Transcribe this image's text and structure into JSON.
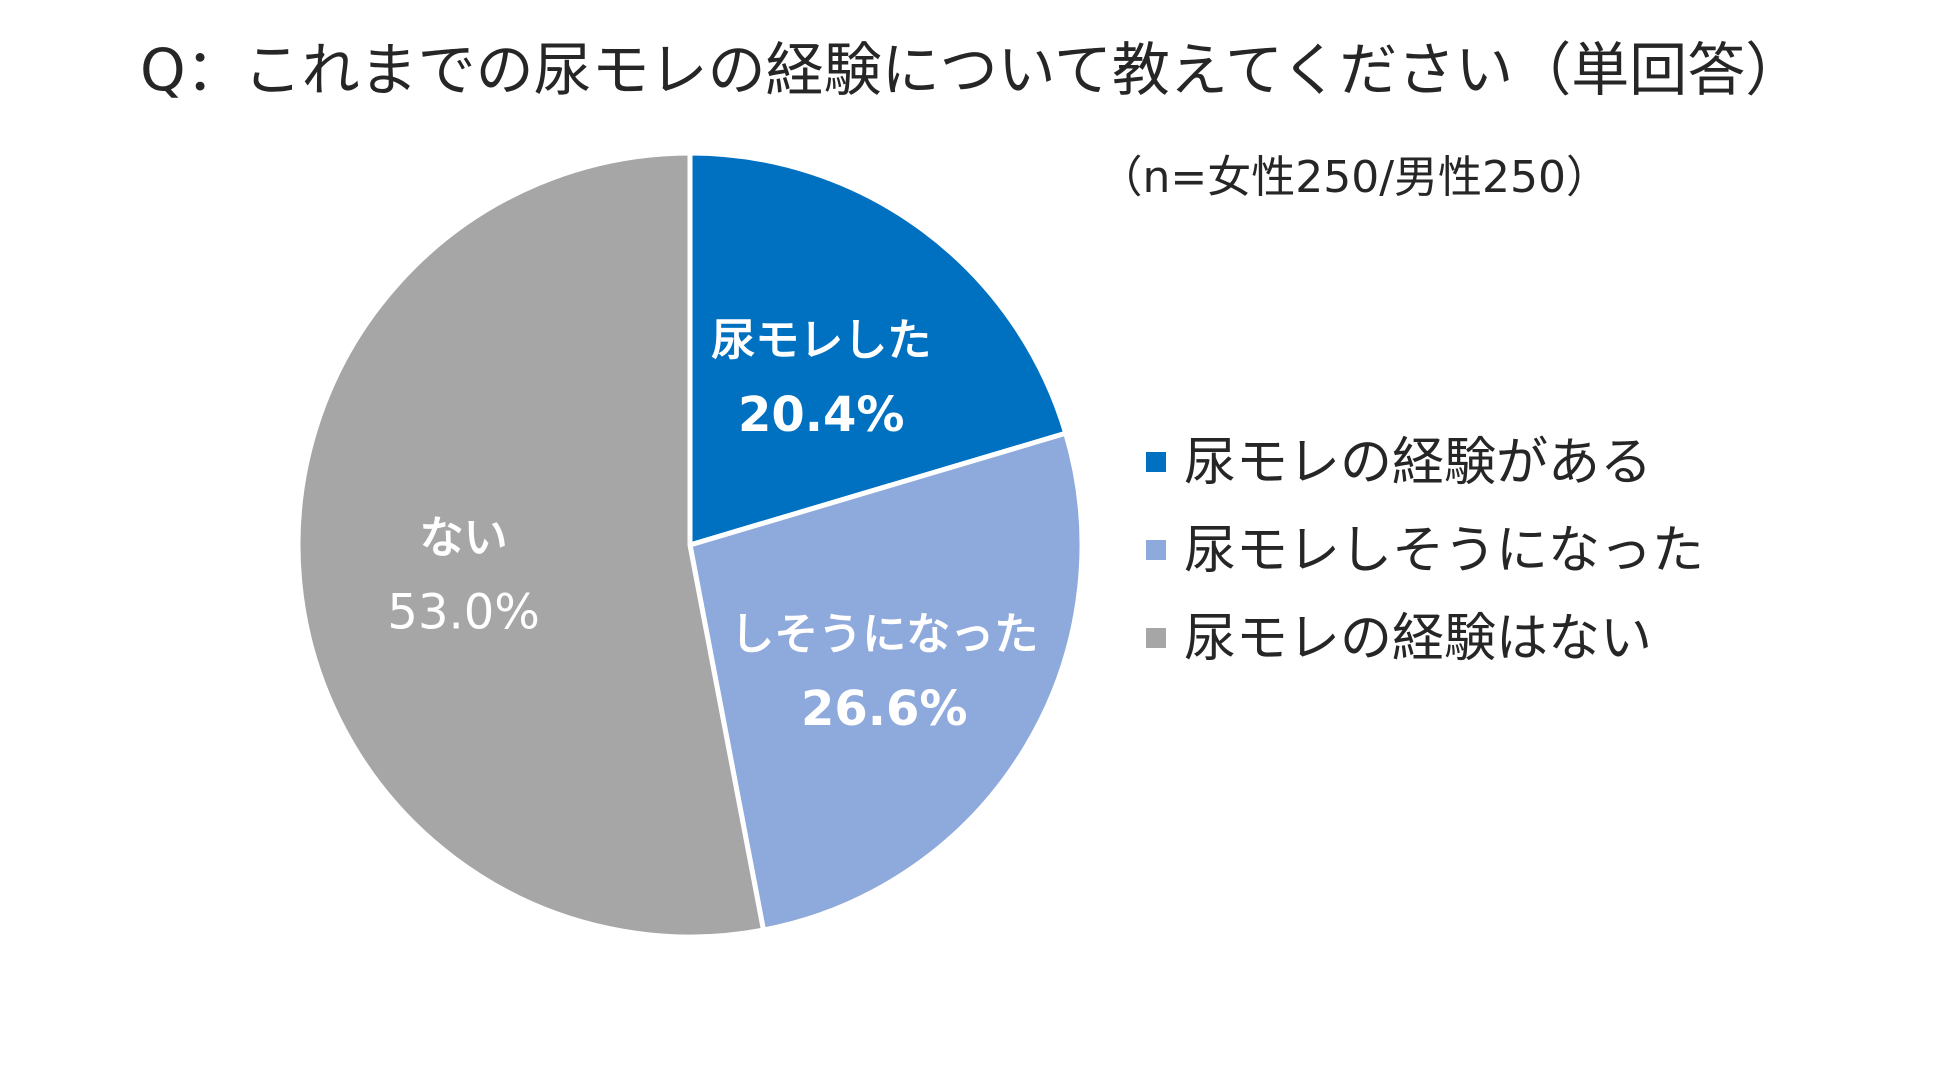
{
  "chart_data": {
    "type": "pie",
    "title": "Q：これまでの尿モレの経験について教えてください（単回答）",
    "subtitle": "（n=女性250/男性250）",
    "legend_position": "right",
    "slices": [
      {
        "legend": "尿モレの経験がある",
        "label": "尿モレした",
        "value": 20.4,
        "value_text": "20.4%",
        "color": "#0070C0"
      },
      {
        "legend": "尿モレしそうになった",
        "label": "しそうになった",
        "value": 26.6,
        "value_text": "26.6%",
        "color": "#8EA9DB"
      },
      {
        "legend": "尿モレの経験はない",
        "label": "ない",
        "value": 53.0,
        "value_text": "53.0%",
        "color": "#A6A6A6"
      }
    ]
  }
}
